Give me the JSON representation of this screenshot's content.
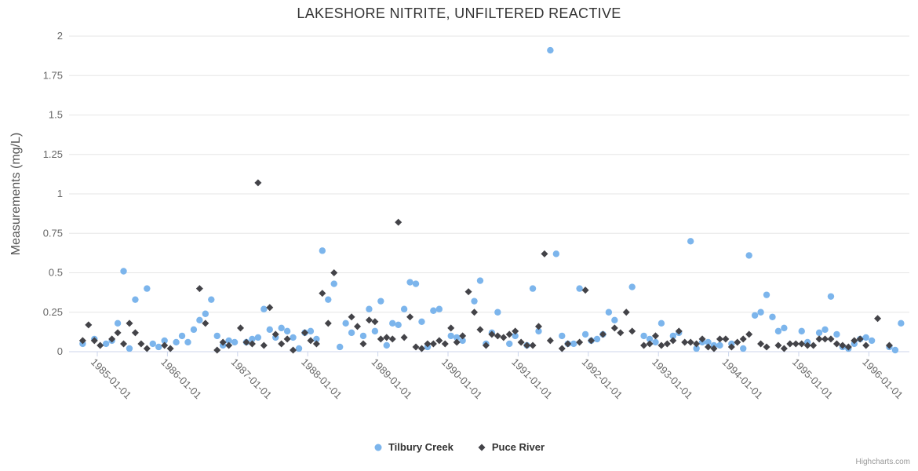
{
  "chart_data": {
    "type": "scatter",
    "title": "LAKESHORE NITRITE, UNFILTERED REACTIVE",
    "xlabel": "",
    "ylabel": "Measurements (mg/L)",
    "ylim": [
      0,
      2
    ],
    "yticks": [
      0,
      0.25,
      0.5,
      0.75,
      1,
      1.25,
      1.5,
      1.75,
      2
    ],
    "xticks": [
      "1985-01-01",
      "1986-01-01",
      "1987-01-01",
      "1988-01-01",
      "1989-01-01",
      "1990-01-01",
      "1991-01-01",
      "1992-01-01",
      "1993-01-01",
      "1994-01-01",
      "1995-01-01",
      "1996-01-01"
    ],
    "x_tick_rotation": 45,
    "grid": true,
    "legend_position": "bottom",
    "series": [
      {
        "name": "Tilbury Creek",
        "marker": "circle",
        "color": "#7cb5ec",
        "points": [
          [
            "1984-10",
            0.05
          ],
          [
            "1984-12",
            0.08
          ],
          [
            "1985-02",
            0.05
          ],
          [
            "1985-03",
            0.07
          ],
          [
            "1985-04",
            0.18
          ],
          [
            "1985-05",
            0.51
          ],
          [
            "1985-06",
            0.02
          ],
          [
            "1985-07",
            0.33
          ],
          [
            "1985-09",
            0.4
          ],
          [
            "1985-10",
            0.05
          ],
          [
            "1985-11",
            0.03
          ],
          [
            "1985-12",
            0.07
          ],
          [
            "1986-02",
            0.06
          ],
          [
            "1986-03",
            0.1
          ],
          [
            "1986-04",
            0.06
          ],
          [
            "1986-05",
            0.14
          ],
          [
            "1986-06",
            0.2
          ],
          [
            "1986-07",
            0.24
          ],
          [
            "1986-08",
            0.33
          ],
          [
            "1986-09",
            0.1
          ],
          [
            "1986-10",
            0.04
          ],
          [
            "1986-11",
            0.07
          ],
          [
            "1986-12",
            0.06
          ],
          [
            "1987-02",
            0.06
          ],
          [
            "1987-03",
            0.08
          ],
          [
            "1987-04",
            0.09
          ],
          [
            "1987-05",
            0.27
          ],
          [
            "1987-06",
            0.14
          ],
          [
            "1987-07",
            0.09
          ],
          [
            "1987-08",
            0.15
          ],
          [
            "1987-09",
            0.13
          ],
          [
            "1987-10",
            0.09
          ],
          [
            "1987-11",
            0.02
          ],
          [
            "1987-12",
            0.12
          ],
          [
            "1988-01",
            0.13
          ],
          [
            "1988-02",
            0.08
          ],
          [
            "1988-03",
            0.64
          ],
          [
            "1988-04",
            0.33
          ],
          [
            "1988-05",
            0.43
          ],
          [
            "1988-06",
            0.03
          ],
          [
            "1988-07",
            0.18
          ],
          [
            "1988-08",
            0.12
          ],
          [
            "1988-10",
            0.1
          ],
          [
            "1988-11",
            0.27
          ],
          [
            "1988-12",
            0.13
          ],
          [
            "1989-01",
            0.32
          ],
          [
            "1989-02",
            0.04
          ],
          [
            "1989-03",
            0.18
          ],
          [
            "1989-04",
            0.17
          ],
          [
            "1989-05",
            0.27
          ],
          [
            "1989-06",
            0.44
          ],
          [
            "1989-07",
            0.43
          ],
          [
            "1989-08",
            0.19
          ],
          [
            "1989-09",
            0.03
          ],
          [
            "1989-10",
            0.26
          ],
          [
            "1989-11",
            0.27
          ],
          [
            "1990-01",
            0.1
          ],
          [
            "1990-02",
            0.09
          ],
          [
            "1990-03",
            0.07
          ],
          [
            "1990-05",
            0.32
          ],
          [
            "1990-06",
            0.45
          ],
          [
            "1990-07",
            0.05
          ],
          [
            "1990-08",
            0.12
          ],
          [
            "1990-09",
            0.25
          ],
          [
            "1990-11",
            0.05
          ],
          [
            "1990-12",
            0.1
          ],
          [
            "1991-02",
            0.04
          ],
          [
            "1991-03",
            0.4
          ],
          [
            "1991-04",
            0.13
          ],
          [
            "1991-06",
            1.91
          ],
          [
            "1991-07",
            0.62
          ],
          [
            "1991-08",
            0.1
          ],
          [
            "1991-09",
            0.05
          ],
          [
            "1991-10",
            0.05
          ],
          [
            "1991-11",
            0.4
          ],
          [
            "1991-12",
            0.11
          ],
          [
            "1992-01",
            0.07
          ],
          [
            "1992-02",
            0.08
          ],
          [
            "1992-03",
            0.11
          ],
          [
            "1992-04",
            0.25
          ],
          [
            "1992-05",
            0.2
          ],
          [
            "1992-08",
            0.41
          ],
          [
            "1992-10",
            0.1
          ],
          [
            "1992-11",
            0.08
          ],
          [
            "1992-12",
            0.06
          ],
          [
            "1993-01",
            0.18
          ],
          [
            "1993-03",
            0.1
          ],
          [
            "1993-04",
            0.12
          ],
          [
            "1993-06",
            0.7
          ],
          [
            "1993-07",
            0.02
          ],
          [
            "1993-08",
            0.06
          ],
          [
            "1993-09",
            0.06
          ],
          [
            "1993-10",
            0.04
          ],
          [
            "1993-11",
            0.04
          ],
          [
            "1994-01",
            0.05
          ],
          [
            "1994-03",
            0.02
          ],
          [
            "1994-04",
            0.61
          ],
          [
            "1994-05",
            0.23
          ],
          [
            "1994-06",
            0.25
          ],
          [
            "1994-07",
            0.36
          ],
          [
            "1994-08",
            0.22
          ],
          [
            "1994-09",
            0.13
          ],
          [
            "1994-10",
            0.15
          ],
          [
            "1995-01",
            0.13
          ],
          [
            "1995-02",
            0.06
          ],
          [
            "1995-04",
            0.12
          ],
          [
            "1995-05",
            0.14
          ],
          [
            "1995-06",
            0.35
          ],
          [
            "1995-07",
            0.11
          ],
          [
            "1995-08",
            0.03
          ],
          [
            "1995-09",
            0.02
          ],
          [
            "1995-10",
            0.05
          ],
          [
            "1995-11",
            0.08
          ],
          [
            "1995-12",
            0.09
          ],
          [
            "1996-01",
            0.07
          ],
          [
            "1996-04",
            0.03
          ],
          [
            "1996-05",
            0.01
          ],
          [
            "1996-06",
            0.18
          ]
        ]
      },
      {
        "name": "Puce River",
        "marker": "diamond",
        "color": "#434348",
        "points": [
          [
            "1984-10",
            0.07
          ],
          [
            "1984-11",
            0.17
          ],
          [
            "1984-12",
            0.07
          ],
          [
            "1985-01",
            0.04
          ],
          [
            "1985-03",
            0.08
          ],
          [
            "1985-04",
            0.12
          ],
          [
            "1985-05",
            0.05
          ],
          [
            "1985-06",
            0.18
          ],
          [
            "1985-07",
            0.12
          ],
          [
            "1985-08",
            0.05
          ],
          [
            "1985-09",
            0.02
          ],
          [
            "1985-12",
            0.04
          ],
          [
            "1986-01",
            0.02
          ],
          [
            "1986-06",
            0.4
          ],
          [
            "1986-07",
            0.18
          ],
          [
            "1986-09",
            0.01
          ],
          [
            "1986-10",
            0.06
          ],
          [
            "1986-11",
            0.04
          ],
          [
            "1987-01",
            0.15
          ],
          [
            "1987-02",
            0.06
          ],
          [
            "1987-03",
            0.05
          ],
          [
            "1987-04",
            1.07
          ],
          [
            "1987-05",
            0.04
          ],
          [
            "1987-06",
            0.28
          ],
          [
            "1987-07",
            0.11
          ],
          [
            "1987-08",
            0.05
          ],
          [
            "1987-09",
            0.08
          ],
          [
            "1987-10",
            0.01
          ],
          [
            "1987-12",
            0.12
          ],
          [
            "1988-01",
            0.07
          ],
          [
            "1988-02",
            0.05
          ],
          [
            "1988-03",
            0.37
          ],
          [
            "1988-04",
            0.18
          ],
          [
            "1988-05",
            0.5
          ],
          [
            "1988-08",
            0.22
          ],
          [
            "1988-09",
            0.16
          ],
          [
            "1988-10",
            0.05
          ],
          [
            "1988-11",
            0.2
          ],
          [
            "1988-12",
            0.19
          ],
          [
            "1989-01",
            0.08
          ],
          [
            "1989-02",
            0.09
          ],
          [
            "1989-03",
            0.08
          ],
          [
            "1989-04",
            0.82
          ],
          [
            "1989-05",
            0.09
          ],
          [
            "1989-06",
            0.22
          ],
          [
            "1989-07",
            0.03
          ],
          [
            "1989-08",
            0.02
          ],
          [
            "1989-09",
            0.05
          ],
          [
            "1989-10",
            0.05
          ],
          [
            "1989-11",
            0.07
          ],
          [
            "1989-12",
            0.05
          ],
          [
            "1990-01",
            0.15
          ],
          [
            "1990-02",
            0.06
          ],
          [
            "1990-03",
            0.1
          ],
          [
            "1990-04",
            0.38
          ],
          [
            "1990-05",
            0.25
          ],
          [
            "1990-06",
            0.14
          ],
          [
            "1990-07",
            0.04
          ],
          [
            "1990-08",
            0.11
          ],
          [
            "1990-09",
            0.1
          ],
          [
            "1990-10",
            0.09
          ],
          [
            "1990-11",
            0.11
          ],
          [
            "1990-12",
            0.13
          ],
          [
            "1991-01",
            0.06
          ],
          [
            "1991-02",
            0.04
          ],
          [
            "1991-03",
            0.04
          ],
          [
            "1991-04",
            0.16
          ],
          [
            "1991-05",
            0.62
          ],
          [
            "1991-06",
            0.07
          ],
          [
            "1991-08",
            0.02
          ],
          [
            "1991-09",
            0.05
          ],
          [
            "1991-11",
            0.06
          ],
          [
            "1991-12",
            0.39
          ],
          [
            "1992-01",
            0.07
          ],
          [
            "1992-03",
            0.11
          ],
          [
            "1992-05",
            0.15
          ],
          [
            "1992-06",
            0.12
          ],
          [
            "1992-07",
            0.25
          ],
          [
            "1992-08",
            0.13
          ],
          [
            "1992-10",
            0.04
          ],
          [
            "1992-11",
            0.05
          ],
          [
            "1992-12",
            0.1
          ],
          [
            "1993-01",
            0.04
          ],
          [
            "1993-02",
            0.05
          ],
          [
            "1993-03",
            0.07
          ],
          [
            "1993-04",
            0.13
          ],
          [
            "1993-05",
            0.06
          ],
          [
            "1993-06",
            0.06
          ],
          [
            "1993-07",
            0.05
          ],
          [
            "1993-08",
            0.08
          ],
          [
            "1993-09",
            0.03
          ],
          [
            "1993-10",
            0.02
          ],
          [
            "1993-11",
            0.08
          ],
          [
            "1993-12",
            0.08
          ],
          [
            "1994-01",
            0.03
          ],
          [
            "1994-02",
            0.06
          ],
          [
            "1994-03",
            0.08
          ],
          [
            "1994-04",
            0.11
          ],
          [
            "1994-06",
            0.05
          ],
          [
            "1994-07",
            0.03
          ],
          [
            "1994-09",
            0.04
          ],
          [
            "1994-10",
            0.02
          ],
          [
            "1994-11",
            0.05
          ],
          [
            "1994-12",
            0.05
          ],
          [
            "1995-01",
            0.05
          ],
          [
            "1995-02",
            0.04
          ],
          [
            "1995-03",
            0.04
          ],
          [
            "1995-04",
            0.08
          ],
          [
            "1995-05",
            0.08
          ],
          [
            "1995-06",
            0.08
          ],
          [
            "1995-07",
            0.05
          ],
          [
            "1995-08",
            0.04
          ],
          [
            "1995-09",
            0.03
          ],
          [
            "1995-10",
            0.07
          ],
          [
            "1995-11",
            0.08
          ],
          [
            "1995-12",
            0.04
          ],
          [
            "1996-02",
            0.21
          ],
          [
            "1996-04",
            0.04
          ]
        ]
      }
    ]
  },
  "colors": {
    "grid": "#e6e6e6",
    "axis_line": "#ccd6eb",
    "tick_label": "#666666",
    "title": "#333333",
    "axis_title": "#555555",
    "legend_text": "#333333",
    "credits": "#999999"
  },
  "credits": {
    "label": "Highcharts.com"
  }
}
